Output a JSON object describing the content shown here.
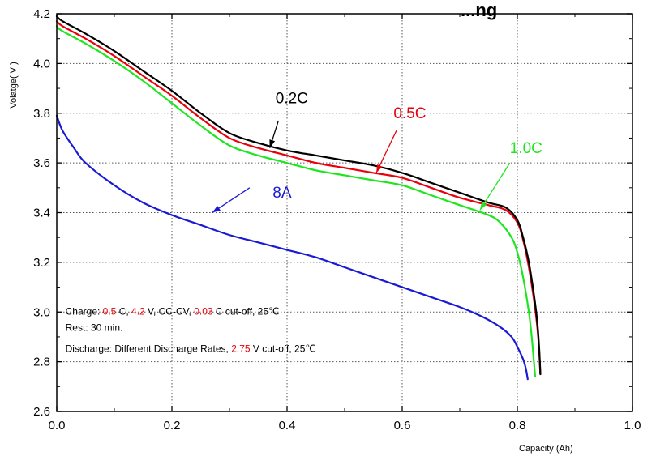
{
  "chart_data": {
    "type": "line",
    "title": "...ng",
    "xlabel": "Capacity  (Ah)",
    "ylabel": "Volatge( V )",
    "xlim": [
      0.0,
      1.0
    ],
    "ylim": [
      2.6,
      4.2
    ],
    "x_ticks": [
      0.0,
      0.2,
      0.4,
      0.6,
      0.8,
      1.0
    ],
    "x_tick_labels": [
      "0.0",
      "0.2",
      "0.4",
      "0.6",
      "0.8",
      "1.0"
    ],
    "y_ticks": [
      2.6,
      2.8,
      3.0,
      3.2,
      3.4,
      3.6,
      3.8,
      4.0,
      4.2
    ],
    "y_tick_labels": [
      "2.6",
      "2.8",
      "3.0",
      "3.2",
      "3.4",
      "3.6",
      "3.8",
      "4.0",
      "4.2"
    ],
    "grid": true,
    "series": [
      {
        "name": "0.2C",
        "color": "#000000",
        "x": [
          0.0,
          0.01,
          0.05,
          0.1,
          0.15,
          0.2,
          0.25,
          0.3,
          0.35,
          0.4,
          0.45,
          0.5,
          0.55,
          0.6,
          0.65,
          0.7,
          0.75,
          0.78,
          0.8,
          0.81,
          0.82,
          0.83,
          0.835,
          0.838,
          0.84
        ],
        "y": [
          4.19,
          4.17,
          4.12,
          4.05,
          3.97,
          3.89,
          3.8,
          3.72,
          3.68,
          3.65,
          3.63,
          3.61,
          3.59,
          3.56,
          3.52,
          3.48,
          3.44,
          3.42,
          3.37,
          3.3,
          3.2,
          3.05,
          2.95,
          2.85,
          2.75
        ]
      },
      {
        "name": "0.5C",
        "color": "#e8000b",
        "x": [
          0.0,
          0.01,
          0.05,
          0.1,
          0.15,
          0.2,
          0.25,
          0.3,
          0.35,
          0.4,
          0.45,
          0.5,
          0.55,
          0.6,
          0.65,
          0.7,
          0.75,
          0.78,
          0.8,
          0.81,
          0.82,
          0.83,
          0.835,
          0.838,
          0.84
        ],
        "y": [
          4.17,
          4.15,
          4.1,
          4.03,
          3.95,
          3.87,
          3.78,
          3.7,
          3.66,
          3.63,
          3.6,
          3.58,
          3.56,
          3.54,
          3.5,
          3.46,
          3.43,
          3.41,
          3.36,
          3.29,
          3.18,
          3.03,
          2.93,
          2.84,
          2.75
        ]
      },
      {
        "name": "1.0C",
        "color": "#1ee61e",
        "x": [
          0.0,
          0.01,
          0.05,
          0.1,
          0.15,
          0.2,
          0.25,
          0.3,
          0.35,
          0.4,
          0.45,
          0.5,
          0.55,
          0.6,
          0.65,
          0.7,
          0.75,
          0.77,
          0.79,
          0.8,
          0.81,
          0.82,
          0.825,
          0.828,
          0.831
        ],
        "y": [
          4.15,
          4.13,
          4.08,
          4.01,
          3.93,
          3.84,
          3.75,
          3.67,
          3.63,
          3.6,
          3.57,
          3.55,
          3.53,
          3.51,
          3.47,
          3.43,
          3.39,
          3.36,
          3.3,
          3.24,
          3.14,
          3.0,
          2.9,
          2.82,
          2.74
        ]
      },
      {
        "name": "8A",
        "color": "#1a1ad6",
        "x": [
          0.0,
          0.01,
          0.03,
          0.05,
          0.1,
          0.15,
          0.2,
          0.25,
          0.3,
          0.35,
          0.4,
          0.45,
          0.5,
          0.55,
          0.6,
          0.65,
          0.7,
          0.74,
          0.77,
          0.79,
          0.8,
          0.81,
          0.815,
          0.818
        ],
        "y": [
          3.79,
          3.73,
          3.66,
          3.6,
          3.51,
          3.44,
          3.39,
          3.35,
          3.31,
          3.28,
          3.25,
          3.22,
          3.18,
          3.14,
          3.1,
          3.06,
          3.02,
          2.98,
          2.94,
          2.9,
          2.86,
          2.81,
          2.77,
          2.73
        ]
      }
    ],
    "annotations": [
      {
        "text": "0.2C",
        "color": "#000000",
        "label_x": 0.38,
        "label_y": 3.84,
        "arrow_from": [
          0.385,
          3.77
        ],
        "arrow_to": [
          0.37,
          3.66
        ]
      },
      {
        "text": "0.5C",
        "color": "#e8000b",
        "label_x": 0.585,
        "label_y": 3.78,
        "arrow_from": [
          0.59,
          3.73
        ],
        "arrow_to": [
          0.555,
          3.56
        ]
      },
      {
        "text": "1.0C",
        "color": "#1ee61e",
        "label_x": 0.787,
        "label_y": 3.64,
        "arrow_from": [
          0.787,
          3.6
        ],
        "arrow_to": [
          0.735,
          3.41
        ]
      },
      {
        "text": "8A",
        "color": "#1a1ad6",
        "label_x": 0.375,
        "label_y": 3.46,
        "arrow_from": [
          0.335,
          3.5
        ],
        "arrow_to": [
          0.27,
          3.4
        ]
      }
    ],
    "notes": [
      {
        "x": 0.015,
        "y": 2.99,
        "parts": [
          {
            "text": "Charge: ",
            "color": "#000000"
          },
          {
            "text": "0.5",
            "color": "#e8000b"
          },
          {
            "text": " C, ",
            "color": "#000000"
          },
          {
            "text": "4.2",
            "color": "#e8000b"
          },
          {
            "text": " V, CC-CV, ",
            "color": "#000000"
          },
          {
            "text": "0.03",
            "color": "#e8000b"
          },
          {
            "text": " C cut-off, 25℃",
            "color": "#000000"
          }
        ]
      },
      {
        "x": 0.015,
        "y": 2.925,
        "parts": [
          {
            "text": "Rest: 30 min.",
            "color": "#000000"
          }
        ]
      },
      {
        "x": 0.015,
        "y": 2.84,
        "parts": [
          {
            "text": "Discharge: Different Discharge Rates, ",
            "color": "#000000"
          },
          {
            "text": "2.75",
            "color": "#e8000b"
          },
          {
            "text": " V cut-off, 25℃",
            "color": "#000000"
          }
        ]
      }
    ]
  }
}
